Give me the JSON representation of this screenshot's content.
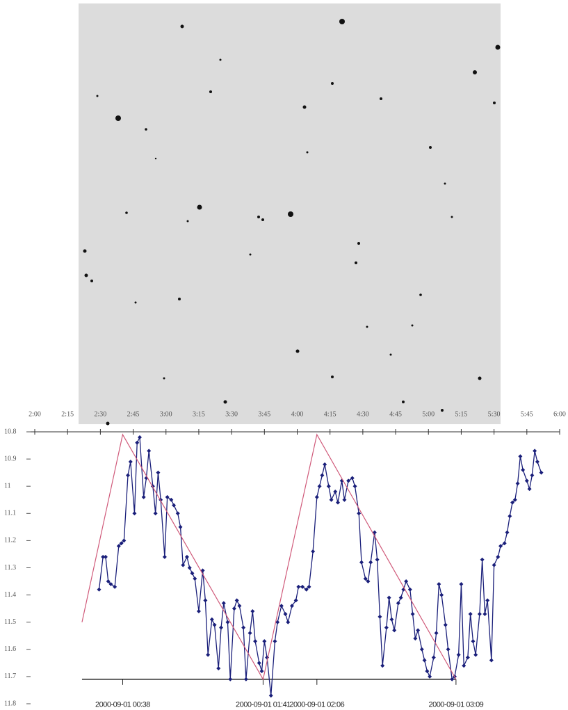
{
  "chart_data": {
    "type": "line",
    "x": [
      2.49,
      2.52,
      2.54,
      2.56,
      2.58,
      2.61,
      2.64,
      2.66,
      2.68,
      2.71,
      2.73,
      2.76,
      2.78,
      2.8,
      2.83,
      2.85,
      2.87,
      2.9,
      2.92,
      2.94,
      2.96,
      2.99,
      3.01,
      3.04,
      3.06,
      3.09,
      3.11,
      3.13,
      3.16,
      3.18,
      3.2,
      3.22,
      3.25,
      3.28,
      3.3,
      3.32,
      3.35,
      3.37,
      3.4,
      3.42,
      3.44,
      3.47,
      3.49,
      3.52,
      3.54,
      3.56,
      3.59,
      3.61,
      3.64,
      3.66,
      3.68,
      3.71,
      3.73,
      3.75,
      3.77,
      3.8,
      3.83,
      3.85,
      3.88,
      3.91,
      3.93,
      3.96,
      3.99,
      4.01,
      4.04,
      4.07,
      4.09,
      4.12,
      4.15,
      4.17,
      4.19,
      4.21,
      4.24,
      4.26,
      4.29,
      4.31,
      4.34,
      4.36,
      4.39,
      4.42,
      4.44,
      4.47,
      4.49,
      4.52,
      4.54,
      4.56,
      4.59,
      4.61,
      4.63,
      4.65,
      4.68,
      4.7,
      4.72,
      4.74,
      4.77,
      4.79,
      4.81,
      4.83,
      4.86,
      4.88,
      4.9,
      4.92,
      4.95,
      4.97,
      4.99,
      5.01,
      5.04,
      5.06,
      5.08,
      5.1,
      5.13,
      5.15,
      5.18,
      5.2,
      5.23,
      5.25,
      5.27,
      5.3,
      5.32,
      5.34,
      5.36,
      5.39,
      5.41,
      5.43,
      5.45,
      5.48,
      5.5,
      5.53,
      5.55,
      5.58,
      5.6,
      5.62,
      5.64,
      5.66,
      5.68,
      5.7,
      5.72,
      5.75,
      5.77,
      5.79,
      5.81,
      5.83,
      5.86
    ],
    "series": [
      {
        "color": "#1a1f7a",
        "values": [
          11.38,
          11.26,
          11.26,
          11.35,
          11.36,
          11.37,
          11.22,
          11.21,
          11.2,
          10.96,
          10.91,
          11.1,
          10.84,
          10.82,
          11.04,
          10.97,
          10.87,
          11.0,
          11.1,
          10.95,
          11.05,
          11.26,
          11.04,
          11.05,
          11.07,
          11.1,
          11.15,
          11.29,
          11.26,
          11.3,
          11.32,
          11.34,
          11.46,
          11.31,
          11.42,
          11.62,
          11.49,
          11.51,
          11.67,
          11.52,
          11.43,
          11.5,
          11.71,
          11.45,
          11.42,
          11.44,
          11.52,
          11.71,
          11.54,
          11.46,
          11.57,
          11.65,
          11.68,
          11.57,
          11.63,
          11.77,
          11.57,
          11.5,
          11.44,
          11.47,
          11.5,
          11.44,
          11.42,
          11.37,
          11.37,
          11.38,
          11.37,
          11.24,
          11.04,
          11.0,
          10.96,
          10.92,
          11.0,
          11.05,
          11.02,
          11.06,
          10.98,
          11.05,
          10.98,
          10.97,
          11.0,
          11.1,
          11.28,
          11.34,
          11.35,
          11.28,
          11.17,
          11.27,
          11.48,
          11.66,
          11.52,
          11.41,
          11.49,
          11.53,
          11.43,
          11.41,
          11.38,
          11.35,
          11.38,
          11.47,
          11.56,
          11.53,
          11.6,
          11.64,
          11.68,
          11.7,
          11.63,
          11.54,
          11.36,
          11.4,
          11.51,
          11.6,
          11.71,
          11.7,
          11.62,
          11.36,
          11.66,
          11.63,
          11.47,
          11.57,
          11.62,
          11.47,
          11.27,
          11.47,
          11.42,
          11.64,
          11.29,
          11.26,
          11.22,
          11.21,
          11.17,
          11.11,
          11.06,
          11.05,
          10.99,
          10.89,
          10.94,
          10.98,
          11.01,
          10.96,
          10.87,
          10.91,
          10.95
        ]
      },
      {
        "color": "#d05a7a",
        "x": [
          2.36,
          2.67,
          3.74,
          4.15,
          5.21
        ],
        "values": [
          11.5,
          10.81,
          11.71,
          10.81,
          11.71
        ]
      }
    ],
    "xlim": [
      2,
      6
    ],
    "xticks": [
      {
        "value": 2,
        "label": "2:00"
      },
      {
        "value": 2.25,
        "label": "2:15"
      },
      {
        "value": 2.5,
        "label": "2:30"
      },
      {
        "value": 2.75,
        "label": "2:45"
      },
      {
        "value": 3,
        "label": "3:00"
      },
      {
        "value": 3.25,
        "label": "3:15"
      },
      {
        "value": 3.5,
        "label": "3:30"
      },
      {
        "value": 3.75,
        "label": "3:45"
      },
      {
        "value": 4,
        "label": "4:00"
      },
      {
        "value": 4.25,
        "label": "4:15"
      },
      {
        "value": 4.5,
        "label": "4:30"
      },
      {
        "value": 4.75,
        "label": "4:45"
      },
      {
        "value": 5,
        "label": "5:00"
      },
      {
        "value": 5.25,
        "label": "5:15"
      },
      {
        "value": 5.5,
        "label": "5:30"
      },
      {
        "value": 5.75,
        "label": "5:45"
      },
      {
        "value": 6,
        "label": "6:00"
      }
    ],
    "ylim": [
      10.8,
      11.8
    ],
    "yticks": [
      10.8,
      10.9,
      11,
      11.1,
      11.2,
      11.3,
      11.4,
      11.5,
      11.6,
      11.7,
      11.8
    ],
    "y_inverted": true,
    "baseline": 11.71,
    "x2ticks": [
      {
        "value": 2.67,
        "label": "2000-09-01 00:38"
      },
      {
        "value": 3.74,
        "label": "2000-09-01 01:41"
      },
      {
        "value": 4.15,
        "label": "2000-09-01 02:06"
      },
      {
        "value": 5.21,
        "label": "2000-09-01 03:09"
      }
    ]
  }
}
